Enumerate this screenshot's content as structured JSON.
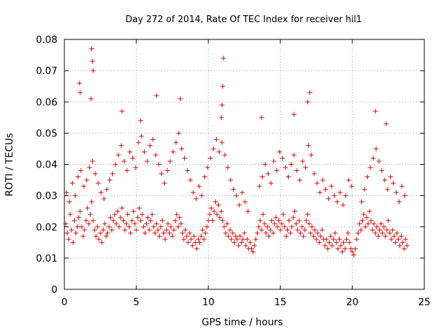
{
  "chart_data": {
    "type": "scatter",
    "title": "Day 272 of 2014, Rate Of TEC Index for receiver hil1",
    "xlabel": "GPS time / hours",
    "ylabel": "ROTI / TECUs",
    "xlim": [
      0,
      25
    ],
    "ylim": [
      0,
      0.08
    ],
    "xticks": [
      0,
      5,
      10,
      15,
      20,
      25
    ],
    "xtick_labels": [
      "0",
      "5",
      "10",
      "15",
      "20",
      "25"
    ],
    "yticks": [
      0,
      0.01,
      0.02,
      0.03,
      0.04,
      0.05,
      0.06,
      0.07,
      0.08
    ],
    "ytick_labels": [
      "0",
      "0.01",
      "0.02",
      "0.03",
      "0.04",
      "0.05",
      "0.06",
      "0.07",
      "0.08"
    ],
    "grid": true,
    "marker": "+",
    "marker_color": "#e00000",
    "grid_color": "#a0a0a0",
    "series": [
      {
        "name": "ROTI",
        "x": [
          0.1,
          0.2,
          0.3,
          0.4,
          0.5,
          0.6,
          0.7,
          0.8,
          0.9,
          1.0,
          1.1,
          1.2,
          1.3,
          1.4,
          1.5,
          1.6,
          1.7,
          1.8,
          1.9,
          2.0,
          2.1,
          2.2,
          2.3,
          2.4,
          2.5,
          2.6,
          2.7,
          2.8,
          2.9,
          3.0,
          3.1,
          3.2,
          3.3,
          3.4,
          3.5,
          3.6,
          3.7,
          3.8,
          3.9,
          4.0,
          4.1,
          4.2,
          4.3,
          4.4,
          4.5,
          4.6,
          4.7,
          4.8,
          4.9,
          5.0,
          5.1,
          5.2,
          5.3,
          5.4,
          5.5,
          5.6,
          5.7,
          5.8,
          5.9,
          6.0,
          6.1,
          6.2,
          6.3,
          6.4,
          6.5,
          6.6,
          6.7,
          6.8,
          6.9,
          7.0,
          7.1,
          7.2,
          7.3,
          7.4,
          7.5,
          7.6,
          7.7,
          7.8,
          7.9,
          8.0,
          8.1,
          8.2,
          8.3,
          8.4,
          8.5,
          8.6,
          8.7,
          8.8,
          8.9,
          9.0,
          9.1,
          9.2,
          9.3,
          9.4,
          9.5,
          9.6,
          9.7,
          9.8,
          9.9,
          10.0,
          10.1,
          10.2,
          10.3,
          10.4,
          10.5,
          10.6,
          10.7,
          10.8,
          10.9,
          11.0,
          11.1,
          11.2,
          11.3,
          11.4,
          11.5,
          11.6,
          11.7,
          11.8,
          11.9,
          12.0,
          12.1,
          12.2,
          12.3,
          12.4,
          12.5,
          12.6,
          12.7,
          12.8,
          12.9,
          13.0,
          13.1,
          13.2,
          13.3,
          13.4,
          13.5,
          13.6,
          13.7,
          13.8,
          13.9,
          14.0,
          14.1,
          14.2,
          14.3,
          14.4,
          14.5,
          14.6,
          14.7,
          14.8,
          14.9,
          15.0,
          15.1,
          15.2,
          15.3,
          15.4,
          15.5,
          15.6,
          15.7,
          15.8,
          15.9,
          16.0,
          16.1,
          16.2,
          16.3,
          16.4,
          16.5,
          16.6,
          16.7,
          16.8,
          16.9,
          17.0,
          17.1,
          17.2,
          17.3,
          17.4,
          17.5,
          17.6,
          17.7,
          17.8,
          17.9,
          18.0,
          18.1,
          18.2,
          18.3,
          18.4,
          18.5,
          18.6,
          18.7,
          18.8,
          18.9,
          19.0,
          19.1,
          19.2,
          19.3,
          19.4,
          19.5,
          19.6,
          19.7,
          19.8,
          19.9,
          20.0,
          20.1,
          20.2,
          20.3,
          20.4,
          20.5,
          20.6,
          20.7,
          20.8,
          20.9,
          21.0,
          21.1,
          21.2,
          21.3,
          21.4,
          21.5,
          21.6,
          21.7,
          21.8,
          21.9,
          22.0,
          22.1,
          22.2,
          22.3,
          22.4,
          22.5,
          22.6,
          22.7,
          22.8,
          22.9,
          23.0,
          23.1,
          23.2,
          23.3,
          23.4,
          23.5,
          23.6,
          23.7,
          23.8,
          0.15,
          0.35,
          0.55,
          0.75,
          0.95,
          1.15,
          1.35,
          1.55,
          1.75,
          1.95,
          2.15,
          2.35,
          2.55,
          2.75,
          2.95,
          3.15,
          3.35,
          3.55,
          3.75,
          3.95,
          4.15,
          4.35,
          4.55,
          4.75,
          4.95,
          5.15,
          5.35,
          5.55,
          5.75,
          5.95,
          6.15,
          6.35,
          6.55,
          6.75,
          6.95,
          7.15,
          7.35,
          7.55,
          7.75,
          7.95,
          8.15,
          8.35,
          8.55,
          8.75,
          8.95,
          9.15,
          9.35,
          9.55,
          9.75,
          9.95,
          10.15,
          10.35,
          10.55,
          10.75,
          10.95,
          11.15,
          11.35,
          11.55,
          11.75,
          11.95,
          12.15,
          12.35,
          12.55,
          12.75,
          13.55,
          13.75,
          13.95,
          14.15,
          14.35,
          14.55,
          14.75,
          14.95,
          15.15,
          15.35,
          15.55,
          15.75,
          15.95,
          16.15,
          16.35,
          16.55,
          16.75,
          16.95,
          17.15,
          17.35,
          17.55,
          17.75,
          17.95,
          18.15,
          18.35,
          18.55,
          18.75,
          18.95,
          19.15,
          19.35,
          19.55,
          19.75,
          19.95,
          20.65,
          20.85,
          21.05,
          21.25,
          21.45,
          21.65,
          21.85,
          22.05,
          22.25,
          22.45,
          22.65,
          22.85,
          23.05,
          23.25,
          23.45,
          23.65,
          1.05,
          1.1,
          1.9,
          1.95,
          2.0,
          1.85,
          10.95,
          11.0,
          10.9,
          11.05,
          17.05,
          16.9,
          6.4,
          8.05,
          21.6,
          22.35,
          4.0,
          5.3,
          13.7,
          15.95
        ],
        "y": [
          0.021,
          0.018,
          0.016,
          0.024,
          0.019,
          0.015,
          0.022,
          0.018,
          0.02,
          0.023,
          0.025,
          0.02,
          0.017,
          0.019,
          0.022,
          0.026,
          0.021,
          0.024,
          0.028,
          0.022,
          0.019,
          0.017,
          0.02,
          0.016,
          0.018,
          0.015,
          0.019,
          0.021,
          0.017,
          0.018,
          0.02,
          0.023,
          0.019,
          0.022,
          0.024,
          0.021,
          0.025,
          0.02,
          0.023,
          0.026,
          0.022,
          0.019,
          0.021,
          0.024,
          0.02,
          0.018,
          0.022,
          0.025,
          0.021,
          0.019,
          0.023,
          0.026,
          0.022,
          0.024,
          0.02,
          0.018,
          0.021,
          0.023,
          0.019,
          0.022,
          0.024,
          0.02,
          0.018,
          0.021,
          0.019,
          0.017,
          0.02,
          0.022,
          0.018,
          0.016,
          0.019,
          0.021,
          0.018,
          0.02,
          0.017,
          0.019,
          0.022,
          0.024,
          0.02,
          0.023,
          0.021,
          0.018,
          0.016,
          0.019,
          0.017,
          0.015,
          0.018,
          0.016,
          0.014,
          0.017,
          0.015,
          0.013,
          0.016,
          0.015,
          0.017,
          0.019,
          0.016,
          0.018,
          0.02,
          0.022,
          0.024,
          0.026,
          0.022,
          0.025,
          0.028,
          0.024,
          0.027,
          0.023,
          0.025,
          0.022,
          0.02,
          0.018,
          0.021,
          0.017,
          0.019,
          0.016,
          0.018,
          0.015,
          0.017,
          0.016,
          0.014,
          0.017,
          0.015,
          0.016,
          0.018,
          0.014,
          0.016,
          0.013,
          0.015,
          0.013,
          0.012,
          0.014,
          0.016,
          0.018,
          0.02,
          0.022,
          0.019,
          0.024,
          0.021,
          0.018,
          0.02,
          0.017,
          0.019,
          0.022,
          0.018,
          0.021,
          0.023,
          0.02,
          0.022,
          0.019,
          0.021,
          0.024,
          0.02,
          0.017,
          0.019,
          0.022,
          0.018,
          0.02,
          0.023,
          0.025,
          0.021,
          0.019,
          0.022,
          0.018,
          0.02,
          0.017,
          0.019,
          0.022,
          0.024,
          0.021,
          0.018,
          0.02,
          0.017,
          0.019,
          0.016,
          0.018,
          0.015,
          0.017,
          0.019,
          0.016,
          0.014,
          0.016,
          0.013,
          0.015,
          0.017,
          0.014,
          0.016,
          0.018,
          0.015,
          0.013,
          0.016,
          0.014,
          0.012,
          0.015,
          0.013,
          0.016,
          0.018,
          0.015,
          0.013,
          0.012,
          0.011,
          0.013,
          0.016,
          0.018,
          0.021,
          0.019,
          0.022,
          0.024,
          0.02,
          0.023,
          0.021,
          0.025,
          0.022,
          0.019,
          0.021,
          0.018,
          0.02,
          0.017,
          0.019,
          0.021,
          0.018,
          0.02,
          0.017,
          0.019,
          0.022,
          0.018,
          0.016,
          0.019,
          0.017,
          0.015,
          0.018,
          0.016,
          0.014,
          0.017,
          0.015,
          0.013,
          0.016,
          0.014,
          0.031,
          0.028,
          0.034,
          0.03,
          0.036,
          0.038,
          0.033,
          0.035,
          0.039,
          0.041,
          0.037,
          0.034,
          0.031,
          0.029,
          0.032,
          0.035,
          0.037,
          0.04,
          0.043,
          0.046,
          0.041,
          0.038,
          0.044,
          0.042,
          0.039,
          0.047,
          0.049,
          0.044,
          0.041,
          0.046,
          0.048,
          0.043,
          0.04,
          0.037,
          0.034,
          0.038,
          0.041,
          0.044,
          0.047,
          0.05,
          0.045,
          0.042,
          0.038,
          0.035,
          0.031,
          0.029,
          0.033,
          0.03,
          0.036,
          0.039,
          0.042,
          0.045,
          0.048,
          0.044,
          0.047,
          0.043,
          0.039,
          0.035,
          0.032,
          0.03,
          0.027,
          0.031,
          0.028,
          0.025,
          0.033,
          0.036,
          0.04,
          0.037,
          0.034,
          0.041,
          0.038,
          0.044,
          0.042,
          0.039,
          0.036,
          0.04,
          0.043,
          0.038,
          0.035,
          0.041,
          0.039,
          0.046,
          0.043,
          0.037,
          0.034,
          0.031,
          0.035,
          0.032,
          0.029,
          0.033,
          0.03,
          0.028,
          0.031,
          0.027,
          0.03,
          0.035,
          0.033,
          0.028,
          0.032,
          0.036,
          0.039,
          0.042,
          0.045,
          0.041,
          0.038,
          0.035,
          0.032,
          0.036,
          0.034,
          0.031,
          0.028,
          0.033,
          0.03,
          0.066,
          0.063,
          0.077,
          0.073,
          0.07,
          0.061,
          0.059,
          0.065,
          0.055,
          0.074,
          0.063,
          0.06,
          0.062,
          0.061,
          0.057,
          0.053,
          0.057,
          0.054,
          0.055,
          0.056
        ]
      }
    ]
  }
}
